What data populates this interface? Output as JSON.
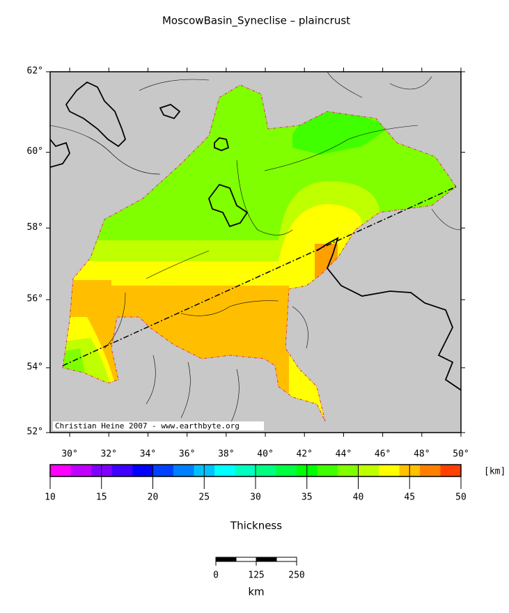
{
  "map": {
    "title": "MoscowBasin_Syneclise – plaincrust",
    "xlim": [
      29,
      50
    ],
    "ylim": [
      52,
      62
    ],
    "lon_ticks": [
      {
        "value": 30,
        "label": "30°"
      },
      {
        "value": 32,
        "label": "32°"
      },
      {
        "value": 34,
        "label": "34°"
      },
      {
        "value": 36,
        "label": "36°"
      },
      {
        "value": 38,
        "label": "38°"
      },
      {
        "value": 40,
        "label": "40°"
      },
      {
        "value": 42,
        "label": "42°"
      },
      {
        "value": 44,
        "label": "44°"
      },
      {
        "value": 46,
        "label": "46°"
      },
      {
        "value": 48,
        "label": "48°"
      },
      {
        "value": 50,
        "label": "50°"
      }
    ],
    "lat_ticks": [
      {
        "value": 52,
        "label": "52°"
      },
      {
        "value": 54,
        "label": "54°"
      },
      {
        "value": 56,
        "label": "56°"
      },
      {
        "value": 58,
        "label": "58°"
      },
      {
        "value": 60,
        "label": "60°"
      },
      {
        "value": 62,
        "label": "62°"
      }
    ],
    "credit": "Christian Heine 2007 - www.earthbyte.org",
    "colorbar": {
      "label": "Thickness",
      "unit": "[km]",
      "lim": [
        10,
        50
      ],
      "ticks": [
        10,
        15,
        20,
        25,
        30,
        35,
        40,
        45,
        50
      ],
      "colors": [
        "#ff00ff",
        "#c000ff",
        "#8000ff",
        "#4000ff",
        "#0000ff",
        "#0040ff",
        "#0080ff",
        "#00c0ff",
        "#00ffff",
        "#00ffc0",
        "#00ff80",
        "#00ff40",
        "#00ff00",
        "#40ff00",
        "#80ff00",
        "#c0ff00",
        "#ffff00",
        "#ffc000",
        "#ff8000",
        "#ff4000"
      ]
    },
    "scalebar": {
      "ticks": [
        0,
        125,
        250
      ],
      "unit": "km"
    }
  }
}
